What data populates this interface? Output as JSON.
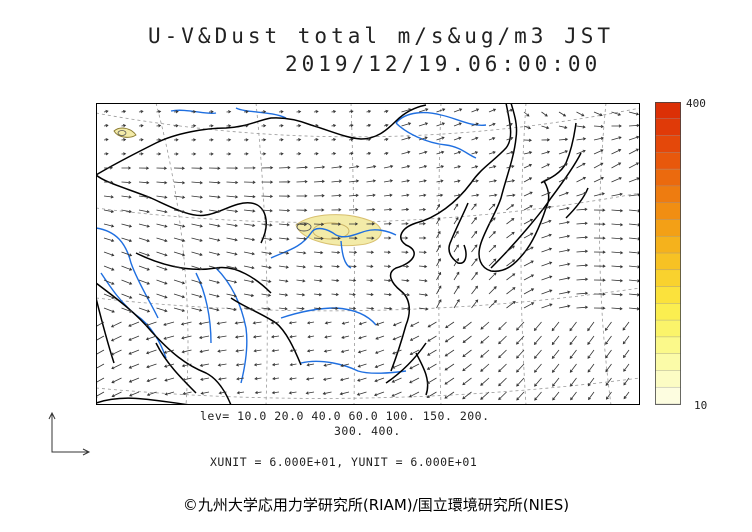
{
  "header": {
    "title": "U-V&Dust total m/s&ug/m3 JST",
    "datetime": "2019/12/19.06:00:00"
  },
  "colorbar": {
    "max_label": "400",
    "min_label": "10",
    "colors": [
      "#fdfde0",
      "#fcfcc4",
      "#fbfba8",
      "#fbf98a",
      "#fbf46a",
      "#fbee50",
      "#fbe23c",
      "#f9d22e",
      "#f7c224",
      "#f5b21c",
      "#f3a016",
      "#f18e12",
      "#ee7c10",
      "#eb6a0e",
      "#e8580c",
      "#e4480a",
      "#e03a08",
      "#dc3006"
    ]
  },
  "legend": {
    "levels_line1": "lev= 10.0 20.0 40.0 60.0 100. 150. 200.",
    "levels_line2": "300. 400.",
    "units_line": "XUNIT = 6.000E+01, YUNIT = 6.000E+01"
  },
  "credit": "©九州大学応用力学研究所(RIAM)/国立環境研究所(NIES)",
  "map": {
    "coast_color": "#000000",
    "river_color": "#1f6fe0",
    "dust_fill": "#f3eba8",
    "dust_contour": "#d8c070",
    "grid_color": "#888888"
  }
}
